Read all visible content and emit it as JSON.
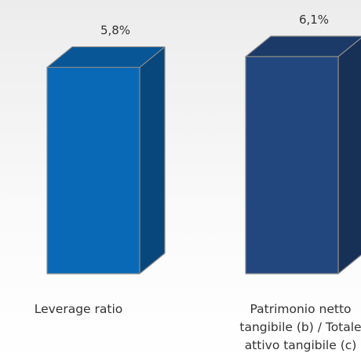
{
  "chart_data": {
    "type": "bar3d",
    "categories": [
      "Leverage ratio",
      "Patrimonio netto tangibile (b) / Totale attivo tangibile (c)"
    ],
    "values": [
      5.8,
      6.1
    ],
    "value_labels": [
      "5,8%",
      "6,1%"
    ],
    "colors": [
      "#0a69b7",
      "#22477e"
    ]
  }
}
